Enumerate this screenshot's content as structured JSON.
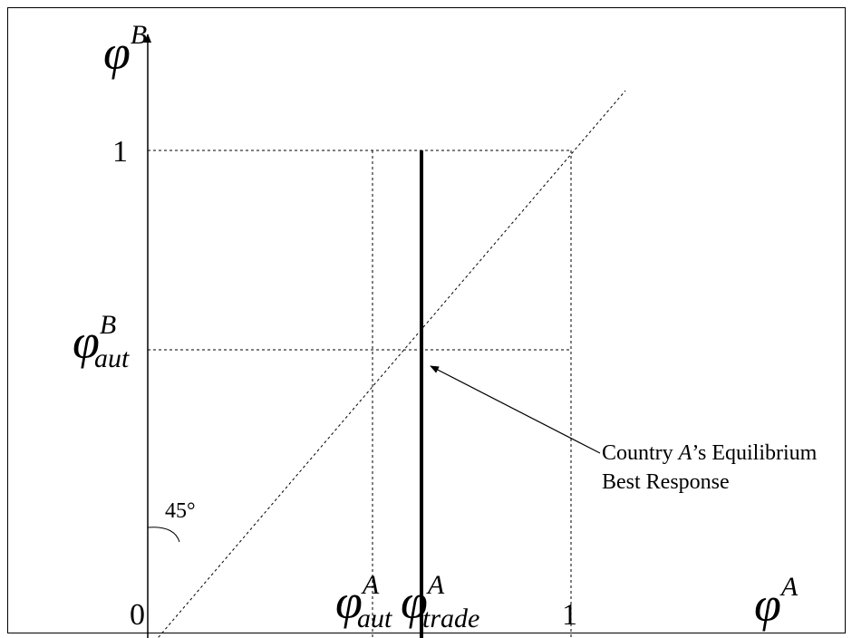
{
  "diagram": {
    "y_axis": {
      "symbol": "φ",
      "superscript": "B"
    },
    "x_axis": {
      "symbol": "φ",
      "superscript": "A"
    },
    "origin_label": "0",
    "y_tick_one": "1",
    "x_tick_one": "1",
    "y_tick_aut": {
      "symbol": "φ",
      "superscript": "B",
      "subscript": "aut"
    },
    "x_tick_aut": {
      "symbol": "φ",
      "superscript": "A",
      "subscript": "aut"
    },
    "x_tick_trade": {
      "symbol": "φ",
      "superscript": "A",
      "subscript": "trade"
    },
    "angle_label": "45°",
    "annotation": {
      "line1_pre": "Country ",
      "line1_em": "A",
      "line1_post": "’s Equilibrium",
      "line2": "Best Response"
    }
  }
}
